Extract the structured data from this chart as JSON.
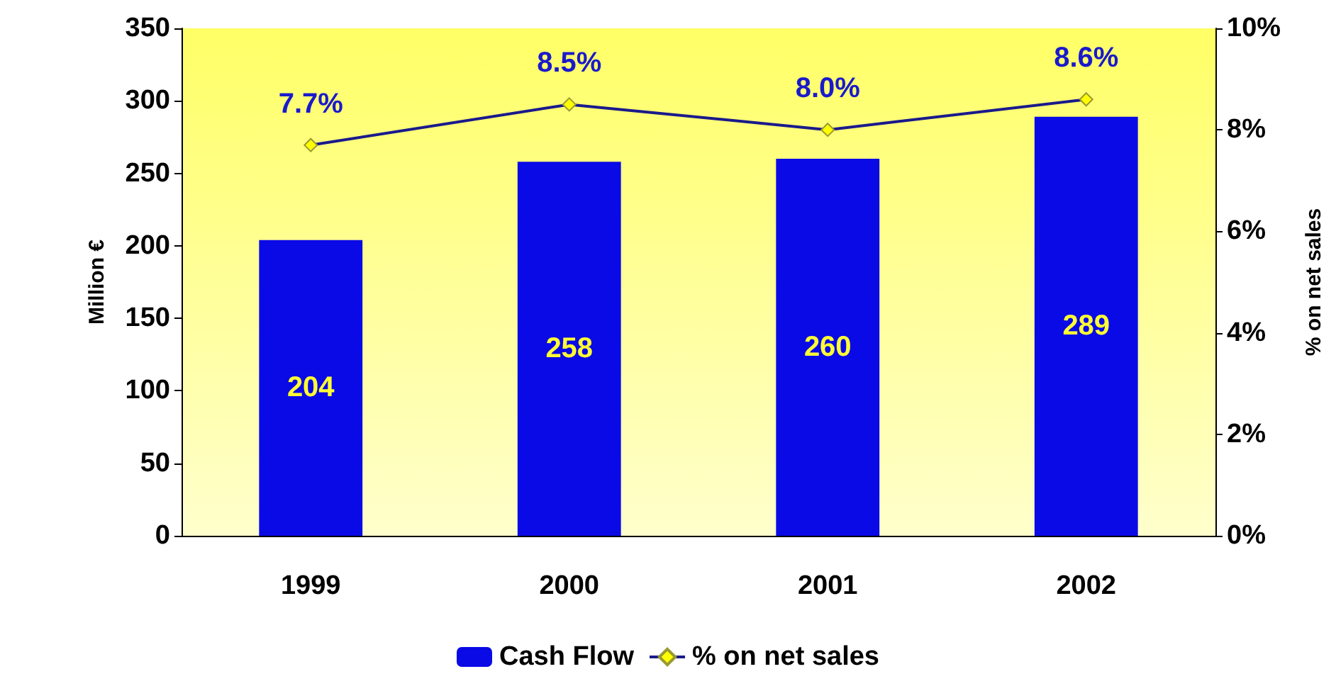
{
  "chart_data": {
    "type": "bar",
    "ylabel": "Million €",
    "y2label": "% on net sales",
    "categories": [
      "1999",
      "2000",
      "2001",
      "2002"
    ],
    "series": [
      {
        "name": "Cash Flow",
        "color": "#0a0ae6",
        "values": [
          204,
          258,
          260,
          289
        ],
        "value_labels": [
          "204",
          "258",
          "260",
          "289"
        ]
      },
      {
        "name": "% on net sales",
        "type": "line",
        "axis": "y2",
        "color": "#1a1a8c",
        "marker": "diamond",
        "values": [
          7.7,
          8.5,
          8.0,
          8.6
        ],
        "value_labels": [
          "7.7%",
          "8.5%",
          "8.0%",
          "8.6%"
        ]
      }
    ],
    "ylim": [
      0,
      350
    ],
    "yticks": [
      0,
      50,
      100,
      150,
      200,
      250,
      300,
      350
    ],
    "y2lim": [
      0,
      10
    ],
    "y2ticks": [
      {
        "value": 0,
        "label": "0%"
      },
      {
        "value": 2,
        "label": "2%"
      },
      {
        "value": 4,
        "label": "4%"
      },
      {
        "value": 6,
        "label": "6%"
      },
      {
        "value": 8,
        "label": "8%"
      },
      {
        "value": 10,
        "label": "10%"
      }
    ],
    "legend": "bottom",
    "grid": false
  }
}
